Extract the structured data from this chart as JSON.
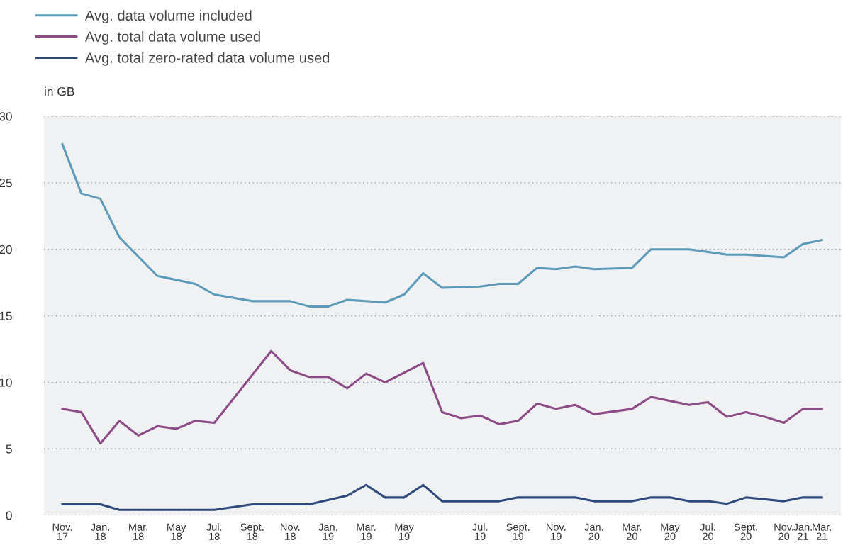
{
  "chart_data": {
    "type": "line",
    "ylabel": "in GB",
    "categories": [
      "Nov.\n17",
      null,
      "Jan.\n18",
      null,
      "Mar.\n18",
      null,
      "May\n18",
      null,
      "Jul.\n18",
      null,
      "Sept.\n18",
      null,
      "Nov.\n18",
      null,
      "Jan.\n19",
      null,
      "Mar.\n19",
      null,
      "May\n19",
      null,
      null,
      null,
      "Jul.\n19",
      null,
      "Sept.\n19",
      null,
      "Nov.\n19",
      null,
      "Jan.\n20",
      null,
      "Mar.\n20",
      null,
      "May\n20",
      null,
      "Jul.\n20",
      null,
      "Sept.\n20",
      null,
      "Nov.\n20",
      "Jan.\n21",
      "Mar.\n21"
    ],
    "ylim": [
      0,
      30
    ],
    "yticks": [
      0,
      5,
      10,
      15,
      20,
      25,
      30
    ],
    "grid": "y",
    "legend": "top left",
    "line_style": "solid",
    "series": [
      {
        "name": "Avg. data volume included",
        "color": "#5b9ab8",
        "values": [
          27.9,
          24.2,
          23.8,
          20.9,
          null,
          18.0,
          null,
          17.4,
          16.6,
          null,
          16.1,
          null,
          16.1,
          15.7,
          15.7,
          16.2,
          null,
          16.0,
          16.6,
          18.2,
          17.1,
          null,
          17.2,
          17.4,
          17.4,
          18.6,
          18.5,
          18.7,
          18.5,
          null,
          18.6,
          20.0,
          null,
          20.0,
          null,
          19.6,
          19.6,
          null,
          19.4,
          20.4,
          20.7
        ]
      },
      {
        "name": "Avg. total data volume used",
        "color": "#8c4a87",
        "values": [
          8.0,
          7.75,
          5.4,
          7.1,
          6.0,
          6.7,
          6.5,
          7.1,
          6.95,
          null,
          null,
          12.35,
          10.9,
          10.4,
          10.4,
          9.55,
          10.65,
          10.0,
          null,
          11.45,
          7.75,
          7.3,
          7.5,
          6.85,
          7.1,
          8.4,
          8.0,
          8.3,
          7.6,
          null,
          8.0,
          8.9,
          null,
          8.3,
          8.5,
          7.4,
          7.75,
          7.4,
          6.95,
          8.0,
          8.0
        ]
      },
      {
        "name": "Avg. total zero-rated data volume used",
        "color": "#2e4a7d",
        "values": [
          0.83,
          null,
          0.83,
          0.41,
          null,
          null,
          null,
          null,
          0.41,
          null,
          0.83,
          null,
          null,
          0.83,
          null,
          1.48,
          2.28,
          1.34,
          1.34,
          2.28,
          1.06,
          null,
          null,
          1.06,
          1.34,
          null,
          null,
          1.34,
          1.06,
          null,
          1.06,
          1.34,
          1.34,
          1.06,
          1.06,
          0.87,
          1.34,
          null,
          1.06,
          1.34,
          1.34
        ]
      }
    ]
  }
}
